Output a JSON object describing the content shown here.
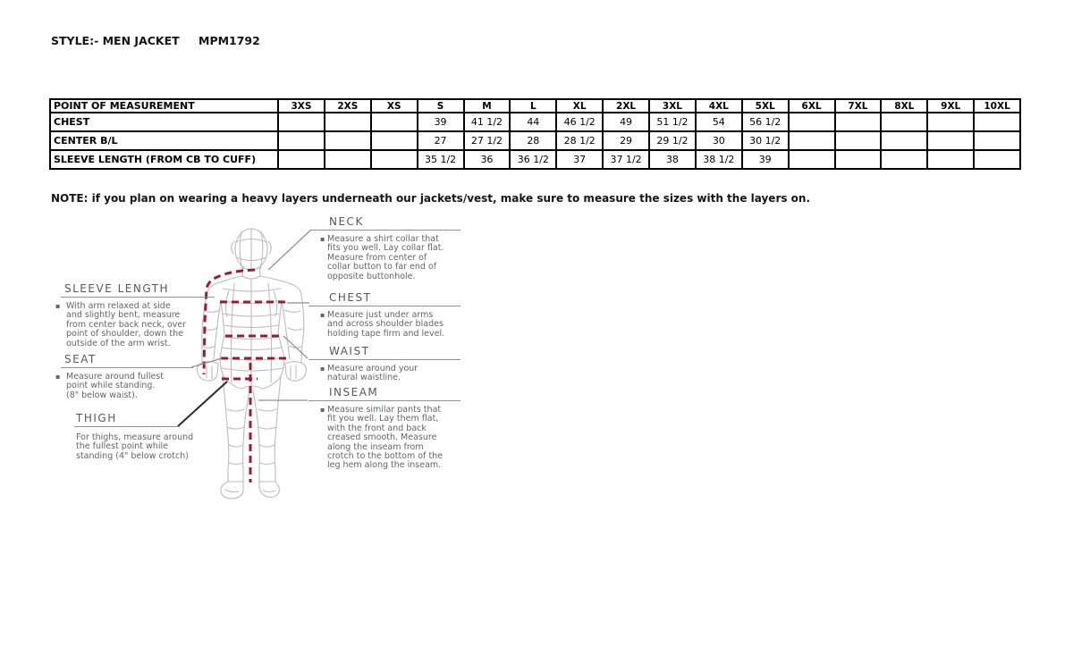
{
  "header": {
    "style_label": "STYLE:- MEN JACKET",
    "style_code": "MPM1792"
  },
  "size_chart": {
    "columns": [
      "POINT OF MEASUREMENT",
      "3XS",
      "2XS",
      "XS",
      "S",
      "M",
      "L",
      "XL",
      "2XL",
      "3XL",
      "4XL",
      "5XL",
      "6XL",
      "7XL",
      "8XL",
      "9XL",
      "10XL"
    ],
    "rows": [
      {
        "label": "CHEST",
        "values": [
          "",
          "",
          "",
          "39",
          "41 1/2",
          "44",
          "46 1/2",
          "49",
          "51 1/2",
          "54",
          "56 1/2",
          "",
          "",
          "",
          "",
          ""
        ]
      },
      {
        "label": "CENTER B/L",
        "values": [
          "",
          "",
          "",
          "27",
          "27 1/2",
          "28",
          "28 1/2",
          "29",
          "29 1/2",
          "30",
          "30 1/2",
          "",
          "",
          "",
          "",
          ""
        ]
      },
      {
        "label": "SLEEVE LENGTH (FROM CB TO CUFF)",
        "values": [
          "",
          "",
          "",
          "35 1/2",
          "36",
          "36 1/2",
          "37",
          "37 1/2",
          "38",
          "38 1/2",
          "39",
          "",
          "",
          "",
          "",
          ""
        ]
      }
    ]
  },
  "note": "NOTE: if you plan on wearing a heavy layers underneath our jackets/vest, make sure to measure the sizes with the layers on.",
  "measure_guide": {
    "sections": [
      {
        "id": "sleeve_length",
        "heading": "SLEEVE LENGTH",
        "bullet": true,
        "lines": [
          "With arm relaxed at side",
          "and slightly bent, measure",
          "from center back neck, over",
          "point of shoulder, down the",
          "outside of the arm wrist."
        ]
      },
      {
        "id": "seat",
        "heading": "SEAT",
        "bullet": true,
        "lines": [
          "Measure around fullest",
          "point while standing.",
          "(8\" below waist)."
        ]
      },
      {
        "id": "thigh",
        "heading": "THIGH",
        "bullet": false,
        "lines": [
          "For thighs, measure around",
          "the fullest point while",
          "standing (4\" below crotch)"
        ]
      },
      {
        "id": "neck",
        "heading": "NECK",
        "bullet": true,
        "lines": [
          "Measure a shirt collar that",
          "fits you well. Lay collar flat.",
          "Measure from center of",
          "collar button to far end of",
          "opposite buttonhole."
        ]
      },
      {
        "id": "chest",
        "heading": "CHEST",
        "bullet": true,
        "lines": [
          "Measure just under arms",
          "and across shoulder blades",
          "holding tape firm and level."
        ]
      },
      {
        "id": "waist",
        "heading": "WAIST",
        "bullet": true,
        "lines": [
          "Measure around your",
          "natural waistline."
        ]
      },
      {
        "id": "inseam",
        "heading": "INSEAM",
        "bullet": true,
        "lines": [
          "Measure similar pants that",
          "fit you well. Lay them flat,",
          "with the front and back",
          "creased smooth. Measure",
          "along the inseam from",
          "crotch to the bottom of the",
          "leg hem along the inseam."
        ]
      }
    ]
  },
  "figure": {
    "icon": "body-wireframe-back-view"
  },
  "colors": {
    "measure_line": "#9b1b33",
    "wireframe": "#bcbcbe",
    "callout": "#8f8f8f",
    "callout_bold": "#2b2b2b",
    "table_border": "#000000"
  }
}
